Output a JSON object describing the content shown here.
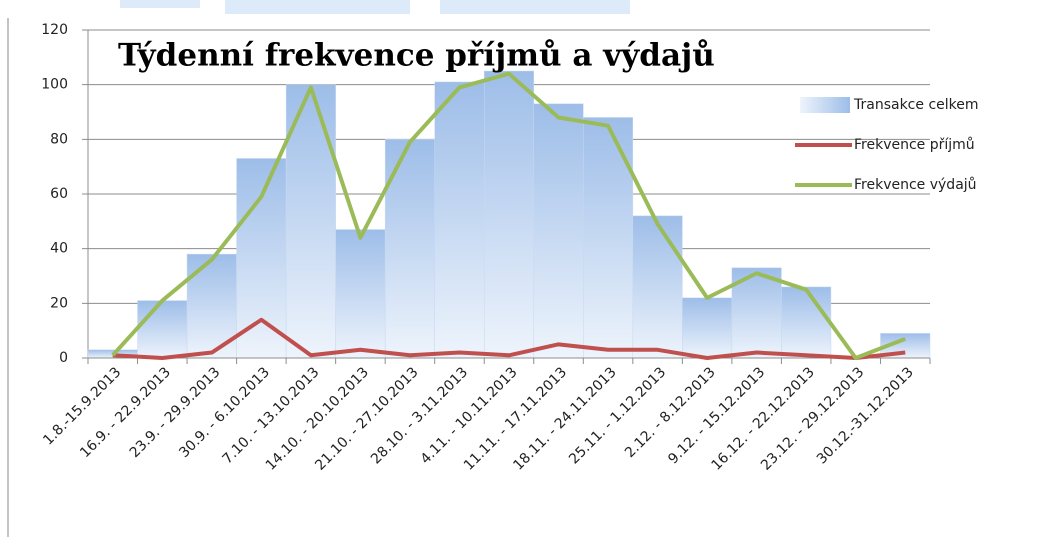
{
  "chart_data": {
    "type": "bar",
    "title": "Týdenní frekvence příjmů a výdajů",
    "categories": [
      "1.8.-15.9.2013",
      "16.9. - 22.9.2013",
      "23.9. - 29.9.2013",
      "30.9. - 6.10.2013",
      "7.10. - 13.10.2013",
      "14.10. - 20.10.2013",
      "21.10. - 27.10.2013",
      "28.10. - 3.11.2013",
      "4.11. - 10.11.2013",
      "11.11. - 17.11.2013",
      "18.11. - 24.11.2013",
      "25.11. - 1.12.2013",
      "2.12. - 8.12.2013",
      "9.12. - 15.12.2013",
      "16.12. - 22.12.2013",
      "23.12. - 29.12.2013",
      "30.12.-31.12.2013"
    ],
    "series": [
      {
        "name": "Transakce celkem",
        "type": "bar",
        "color": "#9dbde8",
        "values": [
          3,
          21,
          38,
          73,
          100,
          47,
          80,
          101,
          105,
          93,
          88,
          52,
          22,
          33,
          26,
          0,
          9
        ]
      },
      {
        "name": "Frekvence příjmů",
        "type": "line",
        "color": "#c0504d",
        "values": [
          1,
          0,
          2,
          14,
          1,
          3,
          1,
          2,
          1,
          5,
          3,
          3,
          0,
          2,
          1,
          0,
          2
        ]
      },
      {
        "name": "Frekvence výdajů",
        "type": "line",
        "color": "#9bbb59",
        "values": [
          1,
          21,
          36,
          59,
          99,
          44,
          79,
          99,
          104,
          88,
          85,
          49,
          22,
          31,
          25,
          0,
          7
        ]
      }
    ],
    "ylim": [
      0,
      120
    ],
    "yticks": [
      0,
      20,
      40,
      60,
      80,
      100,
      120
    ],
    "grid": true,
    "legend": "right"
  }
}
